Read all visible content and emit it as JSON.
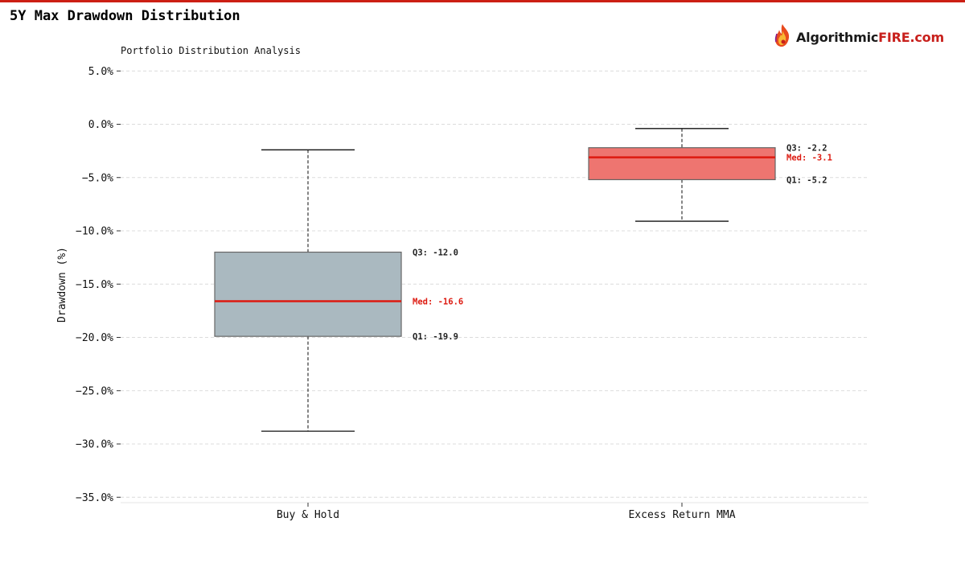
{
  "page": {
    "title": "5Y Max Drawdown Distribution",
    "brand_part1": "Algorithmic",
    "brand_part2": "FIRE.com",
    "logo_icon": "flame-logo-icon"
  },
  "colors": {
    "accent": "#cc1f14",
    "box_buy_hold": "#aab9c0",
    "box_mma": "#ee7570",
    "median": "#dd1a10"
  },
  "chart_data": {
    "type": "box",
    "title": "Portfolio Distribution Analysis",
    "ylabel": "Drawdown (%)",
    "xlabel": "",
    "ylim": [
      -35.5,
      5.5
    ],
    "yticks": [
      5,
      0,
      -5,
      -10,
      -15,
      -20,
      -25,
      -30,
      -35
    ],
    "ytick_labels": [
      "5.0%",
      "0.0%",
      "−5.0%",
      "−10.0%",
      "−15.0%",
      "−20.0%",
      "−25.0%",
      "−30.0%",
      "−35.0%"
    ],
    "grid": true,
    "categories": [
      "Buy & Hold",
      "Excess Return MMA"
    ],
    "boxes": [
      {
        "category": "Buy & Hold",
        "whisker_high": -2.4,
        "q3": -12.0,
        "median": -16.6,
        "q1": -19.9,
        "whisker_low": -28.8,
        "q3_label": "Q3: -12.0",
        "median_label": "Med: -16.6",
        "q1_label": "Q1: -19.9"
      },
      {
        "category": "Excess Return MMA",
        "whisker_high": -0.4,
        "q3": -2.2,
        "median": -3.1,
        "q1": -5.2,
        "whisker_low": -9.1,
        "q3_label": "Q3: -2.2",
        "median_label": "Med: -3.1",
        "q1_label": "Q1: -5.2"
      }
    ]
  }
}
